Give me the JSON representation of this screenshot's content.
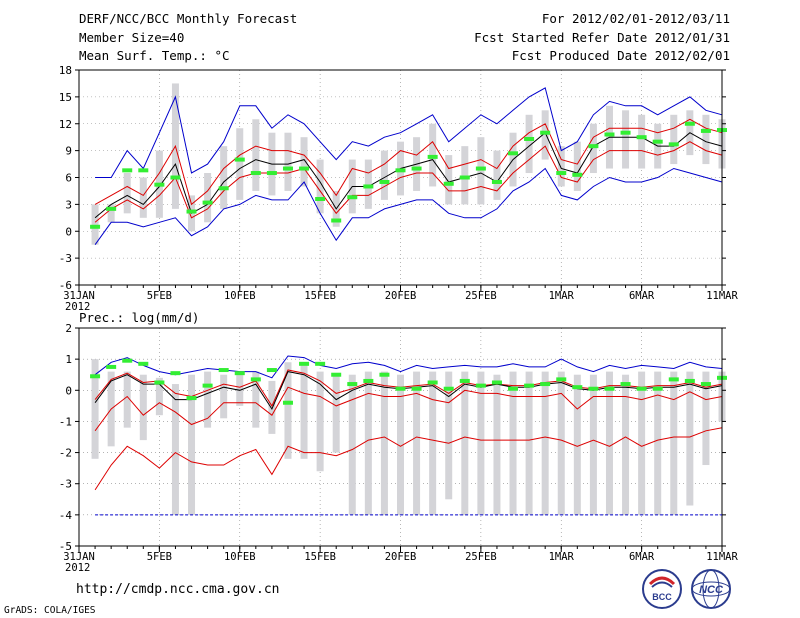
{
  "header": {
    "title": "DERF/NCC/BCC Monthly Forecast",
    "member_size": "Member Size=40",
    "variable": "Mean Surf. Temp.: °C",
    "period": "For 2012/02/01-2012/03/11",
    "fcst_started": "Fcst Started Refer Date 2012/01/31",
    "fcst_produced": "Fcst Produced Date 2012/02/01"
  },
  "footer": {
    "url": "http://cmdp.ncc.cma.gov.cn",
    "credit": "GrADS: COLA/IGES",
    "logo_bcc": "BCC",
    "logo_ncc": "NCC"
  },
  "colors": {
    "obs": "#33ee33",
    "median": "#000000",
    "quartile": "#dd0000",
    "extreme": "#0000cc",
    "spread": "#d4d4d8",
    "grid": "#888888"
  },
  "chart_data": [
    {
      "name": "temperature",
      "type": "line",
      "title": "Mean Surf. Temp.: °C",
      "ylim": [
        -6,
        18
      ],
      "yticks": [
        -6,
        -3,
        0,
        3,
        6,
        9,
        12,
        15,
        18
      ],
      "x_tick_labels": [
        {
          "day": 0,
          "label": "31JAN"
        },
        {
          "day": 5,
          "label": "5FEB"
        },
        {
          "day": 10,
          "label": "10FEB"
        },
        {
          "day": 15,
          "label": "15FEB"
        },
        {
          "day": 20,
          "label": "20FEB"
        },
        {
          "day": 25,
          "label": "25FEB"
        },
        {
          "day": 30,
          "label": "1MAR"
        },
        {
          "day": 35,
          "label": "6MAR"
        },
        {
          "day": 40,
          "label": "11MAR"
        }
      ],
      "year_label": "2012",
      "days": [
        1,
        2,
        3,
        4,
        5,
        6,
        7,
        8,
        9,
        10,
        11,
        12,
        13,
        14,
        15,
        16,
        17,
        18,
        19,
        20,
        21,
        22,
        23,
        24,
        25,
        26,
        27,
        28,
        29,
        30,
        31,
        32,
        33,
        34,
        35,
        36,
        37,
        38,
        39,
        40
      ],
      "max": [
        6,
        6,
        9,
        7,
        11,
        15,
        6.5,
        7.5,
        10,
        14,
        14,
        11.5,
        13,
        12,
        10,
        8,
        10,
        9.5,
        10.5,
        11,
        12,
        13,
        10,
        11.5,
        13,
        12,
        13.5,
        15,
        16,
        9,
        10,
        13,
        14.5,
        14,
        14,
        13,
        14,
        15,
        13.5,
        13
      ],
      "upper": [
        3,
        4,
        5,
        4,
        6.5,
        9.5,
        3,
        4.5,
        7,
        8.5,
        9.5,
        9,
        9,
        8.5,
        6.5,
        4,
        7,
        6.5,
        7.5,
        9,
        8.5,
        10,
        7,
        7.5,
        8,
        7,
        9.5,
        11,
        12,
        8,
        7.5,
        10.5,
        11.5,
        11.5,
        11.5,
        11,
        11.5,
        12.5,
        11.5,
        11
      ],
      "median": [
        1.5,
        3,
        4,
        3,
        5,
        7.5,
        2,
        3,
        5.5,
        7,
        8,
        7.5,
        7.5,
        8,
        5.5,
        2.5,
        5,
        5,
        6,
        7,
        7.5,
        8,
        5.5,
        6,
        6.5,
        5.5,
        8,
        9.5,
        11,
        7,
        6.5,
        9.5,
        10.5,
        10.5,
        10.5,
        9.5,
        9.5,
        11,
        10,
        9.5
      ],
      "lower": [
        1,
        2.5,
        3.5,
        2.5,
        4,
        6,
        1.5,
        2.5,
        4.5,
        6,
        6.5,
        6.5,
        6.5,
        7,
        4.5,
        2,
        4,
        4,
        5,
        6,
        6.5,
        6.5,
        4.5,
        4.5,
        5,
        4.5,
        6.5,
        8,
        9.5,
        6,
        5.5,
        8,
        9,
        9,
        9,
        8.5,
        9,
        10,
        9,
        8.5
      ],
      "min": [
        -1.5,
        1,
        1,
        0.5,
        1,
        1.5,
        -0.5,
        0.5,
        2.5,
        3,
        4,
        3.5,
        3.5,
        5.5,
        2,
        -1,
        1.5,
        1.5,
        2.5,
        3,
        3.5,
        3.5,
        2,
        1.5,
        1.5,
        2.5,
        4.5,
        5.5,
        7,
        4,
        3.5,
        5,
        6,
        5.5,
        5.5,
        6,
        7,
        6.5,
        6,
        5.5
      ],
      "spread_lo": [
        -1.5,
        1,
        2,
        1.5,
        1.5,
        2.5,
        0,
        1,
        2.5,
        3.5,
        4.5,
        4,
        4.5,
        5,
        2,
        0.5,
        2,
        2.5,
        3.5,
        4,
        4.5,
        5,
        3,
        3,
        3,
        3.5,
        5,
        6.5,
        8,
        5,
        4.5,
        6.5,
        7,
        7,
        7,
        7,
        7.5,
        8.5,
        7.5,
        7
      ],
      "spread_hi": [
        3,
        3,
        6.5,
        6,
        9,
        16.5,
        4,
        6.5,
        9.5,
        11.5,
        12.5,
        11,
        11,
        10.5,
        8,
        4.5,
        8,
        8,
        9,
        10,
        10.5,
        12,
        8.5,
        9.5,
        10.5,
        9,
        11,
        13,
        13.5,
        9.5,
        10,
        12,
        14,
        13.5,
        13,
        12,
        13,
        13.5,
        13,
        12.5
      ],
      "observed": [
        0.5,
        2.5,
        6.8,
        6.8,
        5.2,
        6,
        2.2,
        3.2,
        4.8,
        8,
        6.5,
        6.5,
        7,
        7,
        3.6,
        1.2,
        3.8,
        5,
        5.5,
        6.8,
        7,
        8.3,
        5.3,
        6,
        7,
        5.5,
        8.7,
        10.3,
        11,
        6.5,
        6.3,
        9.5,
        10.8,
        11,
        10.5,
        10,
        9.7,
        12,
        11.2,
        11.3
      ]
    },
    {
      "name": "precipitation",
      "type": "line",
      "title": "Prec.: log(mm/d)",
      "ylim": [
        -5,
        2
      ],
      "yticks": [
        -5,
        -4,
        -3,
        -2,
        -1,
        0,
        1,
        2
      ],
      "x_tick_labels": [
        {
          "day": 0,
          "label": "31JAN"
        },
        {
          "day": 5,
          "label": "5FEB"
        },
        {
          "day": 10,
          "label": "10FEB"
        },
        {
          "day": 15,
          "label": "15FEB"
        },
        {
          "day": 20,
          "label": "20FEB"
        },
        {
          "day": 25,
          "label": "25FEB"
        },
        {
          "day": 30,
          "label": "1MAR"
        },
        {
          "day": 35,
          "label": "6MAR"
        },
        {
          "day": 40,
          "label": "11MAR"
        }
      ],
      "year_label": "2012",
      "days": [
        1,
        2,
        3,
        4,
        5,
        6,
        7,
        8,
        9,
        10,
        11,
        12,
        13,
        14,
        15,
        16,
        17,
        18,
        19,
        20,
        21,
        22,
        23,
        24,
        25,
        26,
        27,
        28,
        29,
        30,
        31,
        32,
        33,
        34,
        35,
        36,
        37,
        38,
        39,
        40
      ],
      "max": [
        0.5,
        0.9,
        1.05,
        0.8,
        0.6,
        0.5,
        0.6,
        0.7,
        0.65,
        0.6,
        0.6,
        0.4,
        1.1,
        1.05,
        0.8,
        0.7,
        0.85,
        0.9,
        0.8,
        0.6,
        0.8,
        0.7,
        0.75,
        0.8,
        0.75,
        0.75,
        0.85,
        0.75,
        0.75,
        1.0,
        0.75,
        0.6,
        0.8,
        0.7,
        0.8,
        0.75,
        0.7,
        0.9,
        0.75,
        0.7
      ],
      "median": [
        -0.4,
        0.3,
        0.5,
        0.2,
        0.2,
        -0.3,
        -0.3,
        -0.1,
        0.1,
        0.0,
        0.2,
        -0.6,
        0.6,
        0.5,
        0.2,
        -0.3,
        0.0,
        0.2,
        0.1,
        0.05,
        0.1,
        0.15,
        -0.2,
        0.2,
        0.1,
        0.2,
        0.1,
        0.1,
        0.2,
        0.25,
        0.05,
        0.0,
        0.1,
        0.1,
        0.05,
        0.1,
        0.1,
        0.2,
        0.05,
        0.15
      ],
      "q1": [
        -0.3,
        0.35,
        0.55,
        0.25,
        0.3,
        -0.1,
        -0.2,
        0.0,
        0.2,
        0.1,
        0.3,
        -0.5,
        0.65,
        0.55,
        0.3,
        -0.1,
        0.05,
        0.25,
        0.15,
        0.1,
        0.15,
        0.2,
        -0.1,
        0.25,
        0.15,
        0.2,
        0.15,
        0.15,
        0.25,
        0.3,
        0.1,
        0.05,
        0.15,
        0.15,
        0.1,
        0.15,
        0.15,
        0.25,
        0.1,
        0.2
      ],
      "lower": [
        -1.3,
        -0.6,
        -0.2,
        -0.8,
        -0.4,
        -0.7,
        -1.1,
        -0.9,
        -0.4,
        -0.4,
        -0.4,
        -0.8,
        0.1,
        -0.1,
        -0.2,
        -0.5,
        -0.3,
        -0.1,
        -0.2,
        -0.2,
        -0.1,
        -0.3,
        -0.4,
        0.0,
        -0.1,
        -0.1,
        -0.2,
        -0.2,
        -0.2,
        -0.1,
        -0.6,
        -0.2,
        -0.2,
        -0.2,
        -0.3,
        -0.15,
        -0.3,
        -0.05,
        -0.3,
        -0.2
      ],
      "min": [
        -3.2,
        -2.4,
        -1.8,
        -2.1,
        -2.5,
        -2.0,
        -2.3,
        -2.4,
        -2.4,
        -2.1,
        -1.9,
        -2.7,
        -1.8,
        -2.0,
        -2.0,
        -2.1,
        -1.9,
        -1.6,
        -1.5,
        -1.8,
        -1.5,
        -1.6,
        -1.7,
        -1.5,
        -1.6,
        -1.6,
        -1.6,
        -1.6,
        -1.5,
        -1.6,
        -1.8,
        -1.6,
        -1.8,
        -1.5,
        -1.8,
        -1.6,
        -1.5,
        -1.5,
        -1.3,
        -1.2
      ],
      "floor": -4,
      "spread_lo": [
        -2.2,
        -1.8,
        -1.2,
        -1.6,
        -0.8,
        -4,
        -4,
        -1.2,
        -0.9,
        -0.5,
        -1.2,
        -1.4,
        -2.2,
        -2.2,
        -2.6,
        -2.0,
        -4,
        -4,
        -4,
        -4,
        -4,
        -4,
        -3.5,
        -4,
        -4,
        -4,
        -4,
        -4,
        -4,
        -4,
        -4,
        -4,
        -4,
        -4,
        -4,
        -4,
        -4,
        -3.7,
        -2.4,
        -1.0
      ],
      "spread_hi": [
        1.0,
        0.6,
        0.6,
        0.5,
        0.4,
        0.2,
        0.5,
        0.6,
        0.5,
        0.5,
        0.6,
        0.3,
        0.9,
        0.8,
        0.6,
        0.5,
        0.5,
        0.6,
        0.6,
        0.5,
        0.6,
        0.6,
        0.6,
        0.6,
        0.6,
        0.5,
        0.6,
        0.6,
        0.6,
        0.6,
        0.5,
        0.5,
        0.6,
        0.5,
        0.6,
        0.6,
        0.6,
        0.6,
        0.6,
        0.6
      ],
      "observed": [
        0.45,
        0.75,
        0.95,
        0.85,
        0.25,
        0.55,
        -0.25,
        0.15,
        0.65,
        0.55,
        0.35,
        0.65,
        -0.4,
        0.85,
        0.85,
        0.5,
        0.2,
        0.3,
        0.5,
        0.05,
        0.05,
        0.25,
        0.05,
        0.3,
        0.15,
        0.25,
        0.05,
        0.15,
        0.2,
        0.35,
        0.1,
        0.05,
        0.05,
        0.2,
        0.05,
        0.05,
        0.35,
        0.3,
        0.2,
        0.4
      ]
    }
  ]
}
